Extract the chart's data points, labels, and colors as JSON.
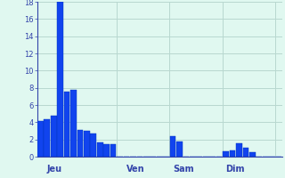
{
  "values": [
    4.1,
    4.3,
    4.8,
    18.0,
    7.6,
    7.8,
    3.1,
    3.0,
    2.7,
    1.7,
    1.5,
    1.5,
    0,
    0,
    0,
    0,
    0,
    0,
    0,
    0,
    2.4,
    1.8,
    0,
    0,
    0,
    0,
    0,
    0,
    0.6,
    0.7,
    1.6,
    1.0,
    0.5,
    0,
    0,
    0,
    0
  ],
  "day_labels": [
    "Jeu",
    "Ven",
    "Sam",
    "Dim"
  ],
  "day_label_bar_index": [
    1,
    13,
    20,
    28
  ],
  "day_separator_indices": [
    0,
    12,
    20,
    28,
    36
  ],
  "ylim": [
    0,
    18
  ],
  "yticks": [
    0,
    2,
    4,
    6,
    8,
    10,
    12,
    14,
    16,
    18
  ],
  "bar_color": "#1144EE",
  "bar_edge_color": "#0033BB",
  "background_color": "#E0F8F0",
  "grid_color": "#B8D8D0",
  "axis_color": "#3344AA",
  "text_color": "#3344AA",
  "ytick_fontsize": 6,
  "xtick_fontsize": 7
}
